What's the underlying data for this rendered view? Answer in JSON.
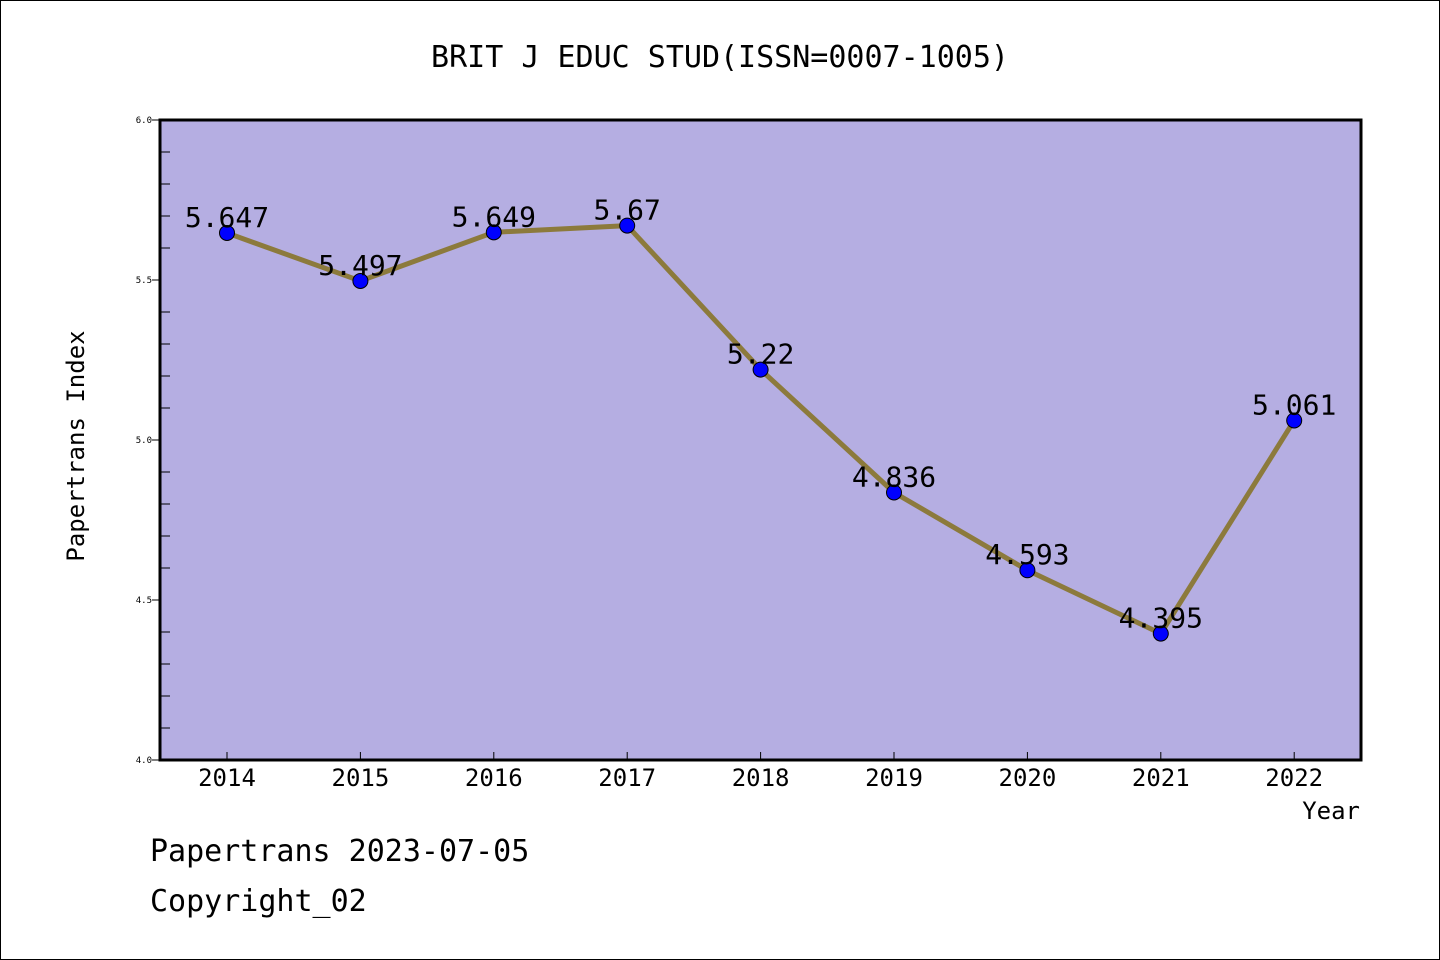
{
  "chart_data": {
    "type": "line",
    "title": "BRIT J EDUC STUD(ISSN=0007-1005)",
    "xlabel": "Year",
    "ylabel": "Papertrans Index",
    "categories": [
      "2014",
      "2015",
      "2016",
      "2017",
      "2018",
      "2019",
      "2020",
      "2021",
      "2022"
    ],
    "values": [
      5.647,
      5.497,
      5.649,
      5.67,
      5.22,
      4.836,
      4.593,
      4.395,
      5.061
    ],
    "value_labels": [
      "5.647",
      "5.497",
      "5.649",
      "5.67",
      "5.22",
      "4.836",
      "4.593",
      "4.395",
      "5.061"
    ],
    "ylim": [
      4.0,
      6.0
    ],
    "yticks": [
      "4.0",
      "4.5",
      "5.0",
      "5.5",
      "6.0"
    ],
    "grid": false,
    "legend": "none",
    "colors": {
      "plot_background": "#b5aee2",
      "line": "#8c7a3c",
      "marker": "#0000ff"
    }
  },
  "footer": {
    "line1": "Papertrans 2023-07-05",
    "line2": "Copyright_02"
  }
}
